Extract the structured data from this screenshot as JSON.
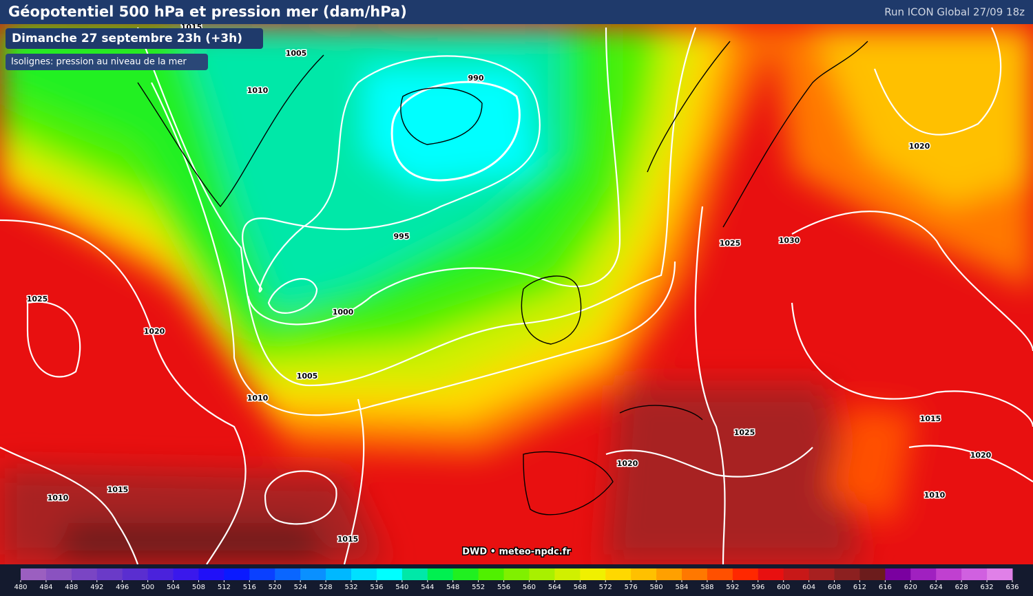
{
  "header": {
    "title": "Géopotentiel 500 hPa et pression mer (dam/hPa)",
    "run": "Run ICON Global 27/09 18z"
  },
  "badges": {
    "date": "Dimanche 27 septembre 23h (+3h)",
    "isolines": "Isolignes: pression au niveau de la mer"
  },
  "isobar_labels": [
    "1015",
    "1005",
    "1010",
    "990",
    "1020",
    "995",
    "1025",
    "1030",
    "1025",
    "1000",
    "1020",
    "1005",
    "1010",
    "1015",
    "1025",
    "1020",
    "1020",
    "1010",
    "1015",
    "1010",
    "1015"
  ],
  "credit": "DWD • meteo-npdc.fr",
  "legend": {
    "ticks": [
      480,
      484,
      488,
      492,
      496,
      500,
      504,
      508,
      512,
      516,
      520,
      524,
      528,
      532,
      536,
      540,
      544,
      548,
      552,
      556,
      560,
      564,
      568,
      572,
      576,
      580,
      584,
      588,
      592,
      596,
      600,
      604,
      608,
      612,
      616,
      620,
      624,
      628,
      632,
      636
    ],
    "colors": [
      "#9b5fc0",
      "#8a52c0",
      "#7a45c4",
      "#6a3ac8",
      "#5a2ed0",
      "#4a22dc",
      "#3a18ec",
      "#2010f8",
      "#0a1aff",
      "#0a40ff",
      "#0a66ff",
      "#0a90ff",
      "#00b8ff",
      "#00e0ff",
      "#00ffff",
      "#00e8a8",
      "#00f050",
      "#20f020",
      "#50f000",
      "#80f000",
      "#a8f000",
      "#d0f000",
      "#f0f000",
      "#ffd800",
      "#ffc000",
      "#ffa000",
      "#ff7800",
      "#ff5000",
      "#ff2800",
      "#e81010",
      "#c81818",
      "#a82020",
      "#8c2020",
      "#6c1c1c",
      "#7a00a0",
      "#a020c0",
      "#c040d0",
      "#d060e0",
      "#e080e8"
    ]
  }
}
